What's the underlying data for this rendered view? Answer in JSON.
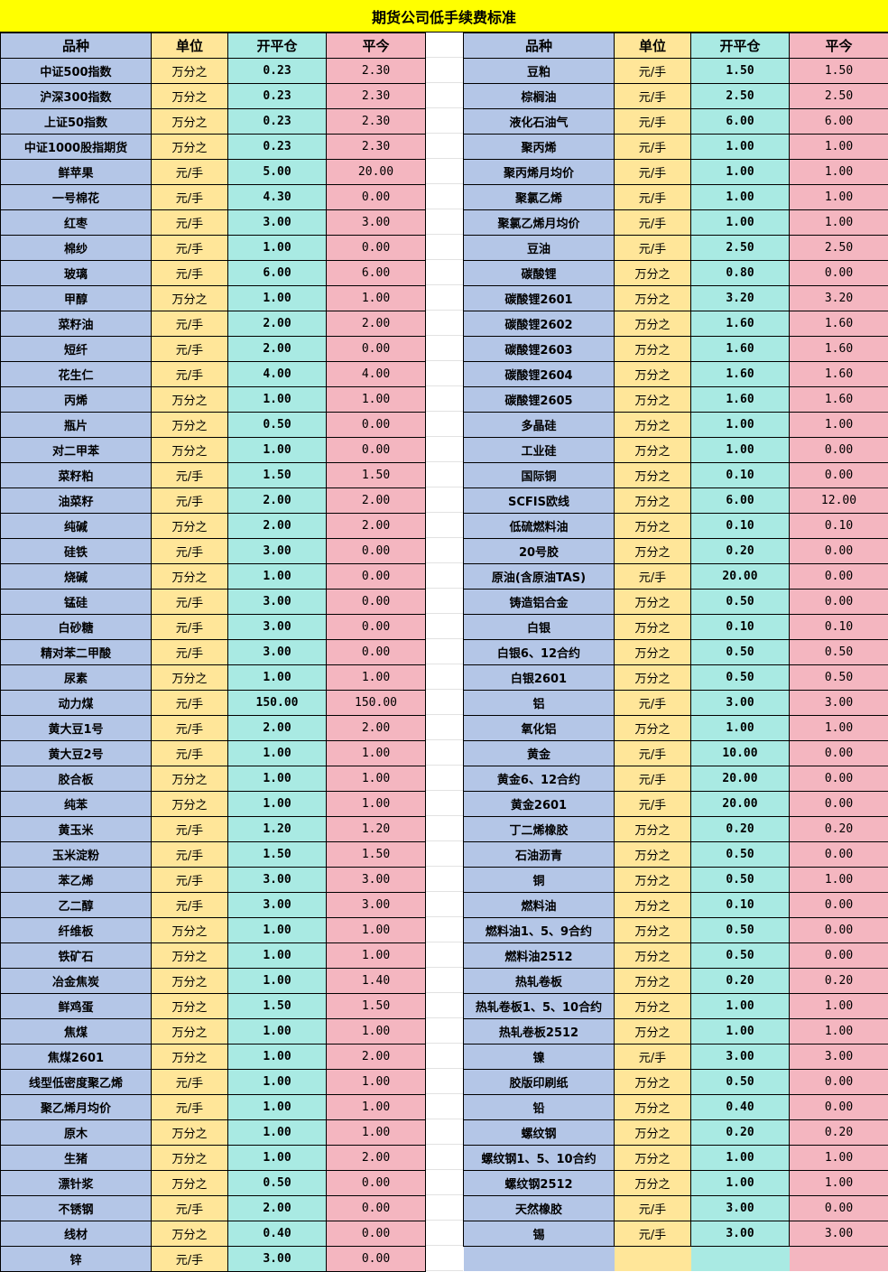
{
  "title": "期货公司低手续费标准",
  "headers": [
    "品种",
    "单位",
    "开平仓",
    "平今"
  ],
  "colors": {
    "title": "#ffff00",
    "product": "#b4c6e7",
    "unit": "#ffe699",
    "open_close": "#a9eae3",
    "close_today": "#f4b6c0"
  },
  "left_rows": [
    [
      "中证500指数",
      "万分之",
      "0.23",
      "2.30"
    ],
    [
      "沪深300指数",
      "万分之",
      "0.23",
      "2.30"
    ],
    [
      "上证50指数",
      "万分之",
      "0.23",
      "2.30"
    ],
    [
      "中证1000股指期货",
      "万分之",
      "0.23",
      "2.30"
    ],
    [
      "鲜苹果",
      "元/手",
      "5.00",
      "20.00"
    ],
    [
      "一号棉花",
      "元/手",
      "4.30",
      "0.00"
    ],
    [
      "红枣",
      "元/手",
      "3.00",
      "3.00"
    ],
    [
      "棉纱",
      "元/手",
      "1.00",
      "0.00"
    ],
    [
      "玻璃",
      "元/手",
      "6.00",
      "6.00"
    ],
    [
      "甲醇",
      "万分之",
      "1.00",
      "1.00"
    ],
    [
      "菜籽油",
      "元/手",
      "2.00",
      "2.00"
    ],
    [
      "短纤",
      "元/手",
      "2.00",
      "0.00"
    ],
    [
      "花生仁",
      "元/手",
      "4.00",
      "4.00"
    ],
    [
      "丙烯",
      "万分之",
      "1.00",
      "1.00"
    ],
    [
      "瓶片",
      "万分之",
      "0.50",
      "0.00"
    ],
    [
      "对二甲苯",
      "万分之",
      "1.00",
      "0.00"
    ],
    [
      "菜籽粕",
      "元/手",
      "1.50",
      "1.50"
    ],
    [
      "油菜籽",
      "元/手",
      "2.00",
      "2.00"
    ],
    [
      "纯碱",
      "万分之",
      "2.00",
      "2.00"
    ],
    [
      "硅铁",
      "元/手",
      "3.00",
      "0.00"
    ],
    [
      "烧碱",
      "万分之",
      "1.00",
      "0.00"
    ],
    [
      "锰硅",
      "元/手",
      "3.00",
      "0.00"
    ],
    [
      "白砂糖",
      "元/手",
      "3.00",
      "0.00"
    ],
    [
      "精对苯二甲酸",
      "元/手",
      "3.00",
      "0.00"
    ],
    [
      "尿素",
      "万分之",
      "1.00",
      "1.00"
    ],
    [
      "动力煤",
      "元/手",
      "150.00",
      "150.00"
    ],
    [
      "黄大豆1号",
      "元/手",
      "2.00",
      "2.00"
    ],
    [
      "黄大豆2号",
      "元/手",
      "1.00",
      "1.00"
    ],
    [
      "胶合板",
      "万分之",
      "1.00",
      "1.00"
    ],
    [
      "纯苯",
      "万分之",
      "1.00",
      "1.00"
    ],
    [
      "黄玉米",
      "元/手",
      "1.20",
      "1.20"
    ],
    [
      "玉米淀粉",
      "元/手",
      "1.50",
      "1.50"
    ],
    [
      "苯乙烯",
      "元/手",
      "3.00",
      "3.00"
    ],
    [
      "乙二醇",
      "元/手",
      "3.00",
      "3.00"
    ],
    [
      "纤维板",
      "万分之",
      "1.00",
      "1.00"
    ],
    [
      "铁矿石",
      "万分之",
      "1.00",
      "1.00"
    ],
    [
      "冶金焦炭",
      "万分之",
      "1.00",
      "1.40"
    ],
    [
      "鲜鸡蛋",
      "万分之",
      "1.50",
      "1.50"
    ],
    [
      "焦煤",
      "万分之",
      "1.00",
      "1.00"
    ],
    [
      "焦煤2601",
      "万分之",
      "1.00",
      "2.00"
    ],
    [
      "线型低密度聚乙烯",
      "元/手",
      "1.00",
      "1.00"
    ],
    [
      "聚乙烯月均价",
      "元/手",
      "1.00",
      "1.00"
    ],
    [
      "原木",
      "万分之",
      "1.00",
      "1.00"
    ],
    [
      "生猪",
      "万分之",
      "1.00",
      "2.00"
    ],
    [
      "漂针浆",
      "万分之",
      "0.50",
      "0.00"
    ],
    [
      "不锈钢",
      "元/手",
      "2.00",
      "0.00"
    ],
    [
      "线材",
      "万分之",
      "0.40",
      "0.00"
    ],
    [
      "锌",
      "元/手",
      "3.00",
      "0.00"
    ]
  ],
  "right_rows": [
    [
      "豆粕",
      "元/手",
      "1.50",
      "1.50"
    ],
    [
      "棕榈油",
      "元/手",
      "2.50",
      "2.50"
    ],
    [
      "液化石油气",
      "元/手",
      "6.00",
      "6.00"
    ],
    [
      "聚丙烯",
      "元/手",
      "1.00",
      "1.00"
    ],
    [
      "聚丙烯月均价",
      "元/手",
      "1.00",
      "1.00"
    ],
    [
      "聚氯乙烯",
      "元/手",
      "1.00",
      "1.00"
    ],
    [
      "聚氯乙烯月均价",
      "元/手",
      "1.00",
      "1.00"
    ],
    [
      "豆油",
      "元/手",
      "2.50",
      "2.50"
    ],
    [
      "碳酸锂",
      "万分之",
      "0.80",
      "0.00"
    ],
    [
      "碳酸锂2601",
      "万分之",
      "3.20",
      "3.20"
    ],
    [
      "碳酸锂2602",
      "万分之",
      "1.60",
      "1.60"
    ],
    [
      "碳酸锂2603",
      "万分之",
      "1.60",
      "1.60"
    ],
    [
      "碳酸锂2604",
      "万分之",
      "1.60",
      "1.60"
    ],
    [
      "碳酸锂2605",
      "万分之",
      "1.60",
      "1.60"
    ],
    [
      "多晶硅",
      "万分之",
      "1.00",
      "1.00"
    ],
    [
      "工业硅",
      "万分之",
      "1.00",
      "0.00"
    ],
    [
      "国际铜",
      "万分之",
      "0.10",
      "0.00"
    ],
    [
      "SCFIS欧线",
      "万分之",
      "6.00",
      "12.00"
    ],
    [
      "低硫燃料油",
      "万分之",
      "0.10",
      "0.10"
    ],
    [
      "20号胶",
      "万分之",
      "0.20",
      "0.00"
    ],
    [
      "原油(含原油TAS)",
      "元/手",
      "20.00",
      "0.00"
    ],
    [
      "铸造铝合金",
      "万分之",
      "0.50",
      "0.00"
    ],
    [
      "白银",
      "万分之",
      "0.10",
      "0.10"
    ],
    [
      "白银6、12合约",
      "万分之",
      "0.50",
      "0.50"
    ],
    [
      "白银2601",
      "万分之",
      "0.50",
      "0.50"
    ],
    [
      "铝",
      "元/手",
      "3.00",
      "3.00"
    ],
    [
      "氧化铝",
      "万分之",
      "1.00",
      "1.00"
    ],
    [
      "黄金",
      "元/手",
      "10.00",
      "0.00"
    ],
    [
      "黄金6、12合约",
      "元/手",
      "20.00",
      "0.00"
    ],
    [
      "黄金2601",
      "元/手",
      "20.00",
      "0.00"
    ],
    [
      "丁二烯橡胶",
      "万分之",
      "0.20",
      "0.20"
    ],
    [
      "石油沥青",
      "万分之",
      "0.50",
      "0.00"
    ],
    [
      "铜",
      "万分之",
      "0.50",
      "1.00"
    ],
    [
      "燃料油",
      "万分之",
      "0.10",
      "0.00"
    ],
    [
      "燃料油1、5、9合约",
      "万分之",
      "0.50",
      "0.00"
    ],
    [
      "燃料油2512",
      "万分之",
      "0.50",
      "0.00"
    ],
    [
      "热轧卷板",
      "万分之",
      "0.20",
      "0.20"
    ],
    [
      "热轧卷板1、5、10合约",
      "万分之",
      "1.00",
      "1.00"
    ],
    [
      "热轧卷板2512",
      "万分之",
      "1.00",
      "1.00"
    ],
    [
      "镍",
      "元/手",
      "3.00",
      "3.00"
    ],
    [
      "胶版印刷纸",
      "万分之",
      "0.50",
      "0.00"
    ],
    [
      "铅",
      "万分之",
      "0.40",
      "0.00"
    ],
    [
      "螺纹钢",
      "万分之",
      "0.20",
      "0.20"
    ],
    [
      "螺纹钢1、5、10合约",
      "万分之",
      "1.00",
      "1.00"
    ],
    [
      "螺纹钢2512",
      "万分之",
      "1.00",
      "1.00"
    ],
    [
      "天然橡胶",
      "元/手",
      "3.00",
      "0.00"
    ],
    [
      "锡",
      "元/手",
      "3.00",
      "3.00"
    ]
  ]
}
